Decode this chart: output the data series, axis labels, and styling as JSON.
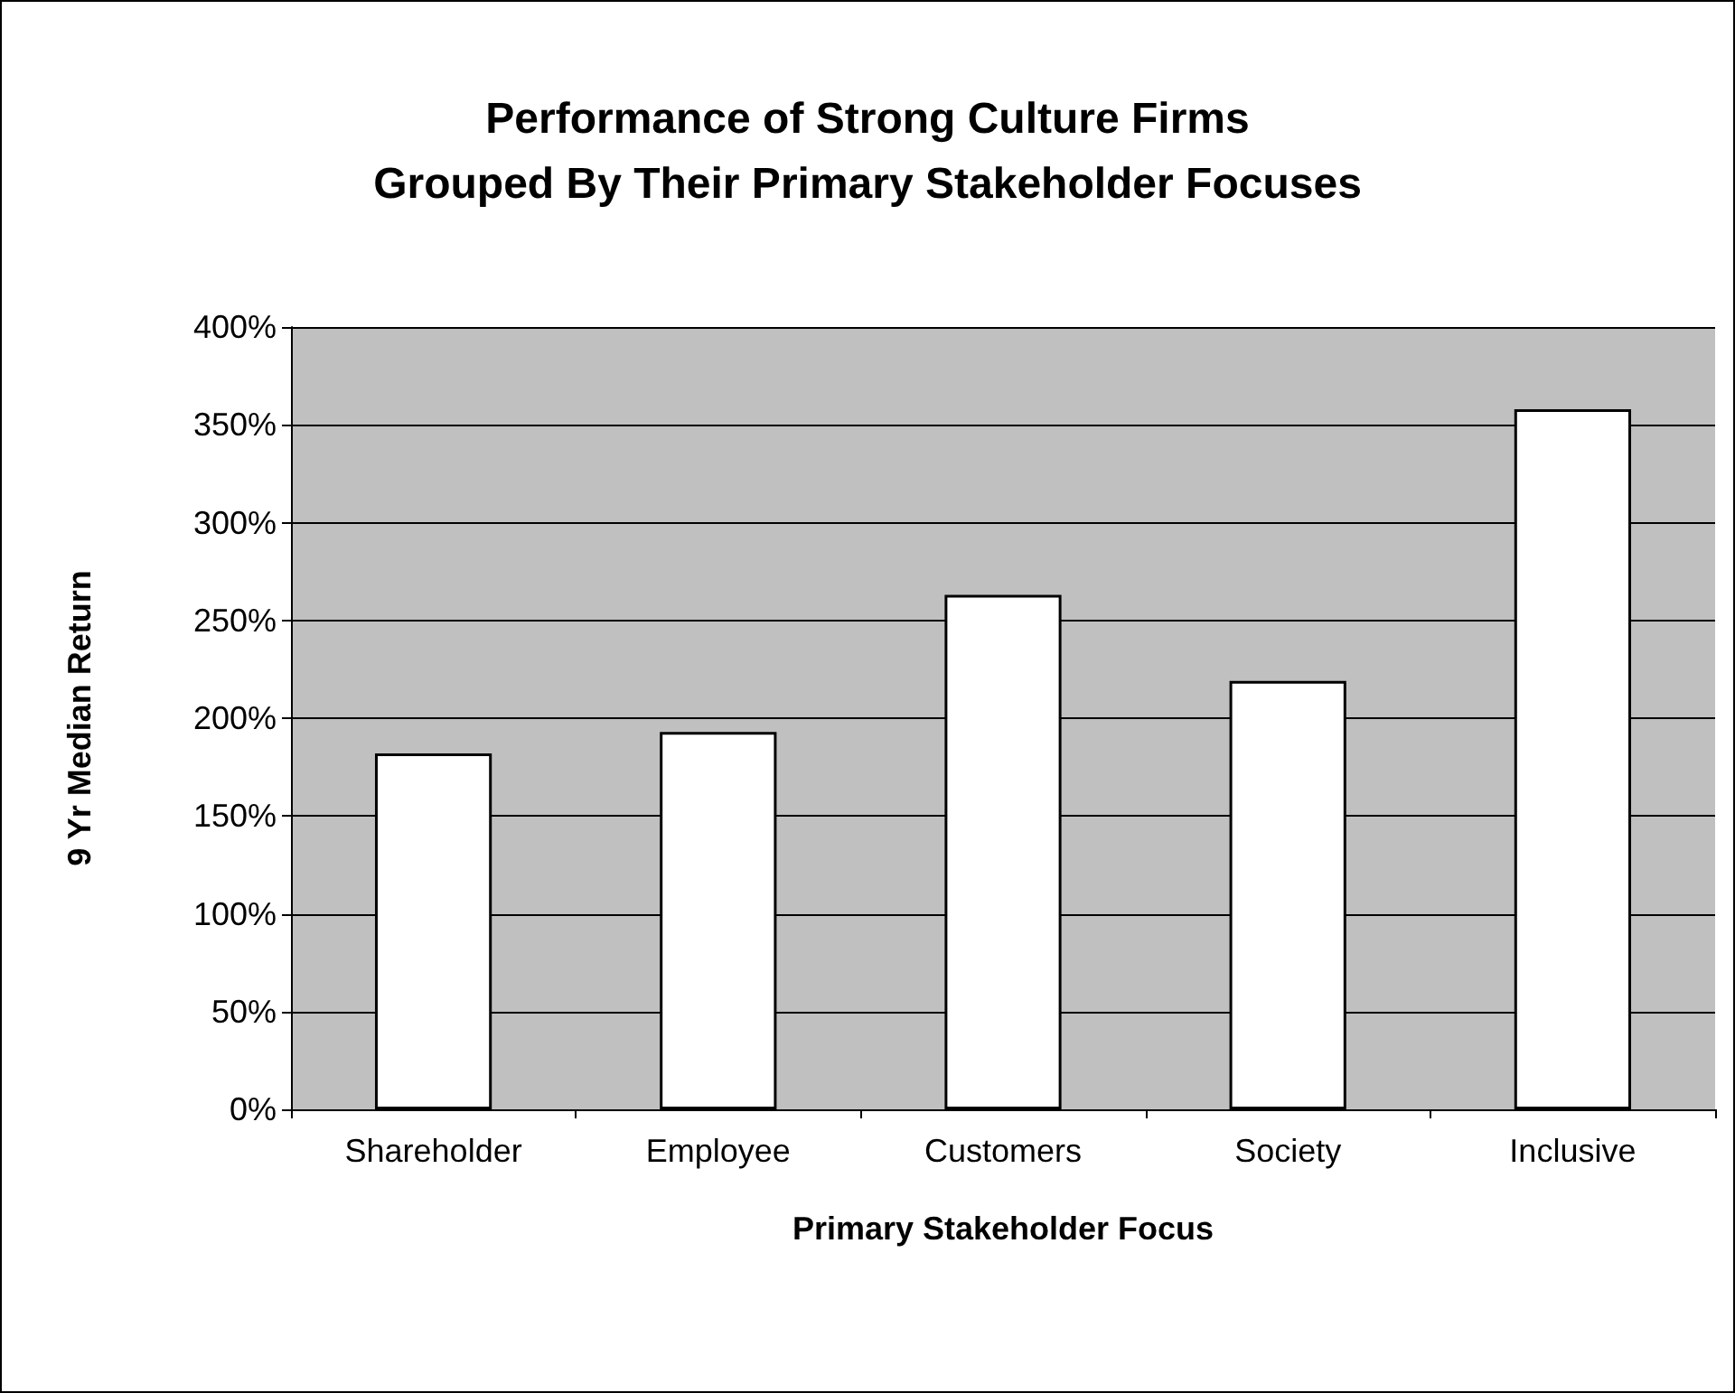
{
  "chart_data": {
    "type": "bar",
    "title": "Performance of Strong Culture Firms\nGrouped By Their Primary Stakeholder Focuses",
    "xlabel": "Primary Stakeholder Focus",
    "ylabel": "9 Yr Median Return",
    "categories": [
      "Shareholder",
      "Employee",
      "Customers",
      "Society",
      "Inclusive"
    ],
    "values": [
      182,
      193,
      263,
      219,
      358
    ],
    "color": "#ffffff",
    "ylim": [
      0,
      400
    ],
    "yticks": [
      {
        "value": 0,
        "label": "0%"
      },
      {
        "value": 50,
        "label": "50%"
      },
      {
        "value": 100,
        "label": "100%"
      },
      {
        "value": 150,
        "label": "150%"
      },
      {
        "value": 200,
        "label": "200%"
      },
      {
        "value": 250,
        "label": "250%"
      },
      {
        "value": 300,
        "label": "300%"
      },
      {
        "value": 350,
        "label": "350%"
      },
      {
        "value": 400,
        "label": "400%"
      }
    ],
    "grid": "y"
  }
}
